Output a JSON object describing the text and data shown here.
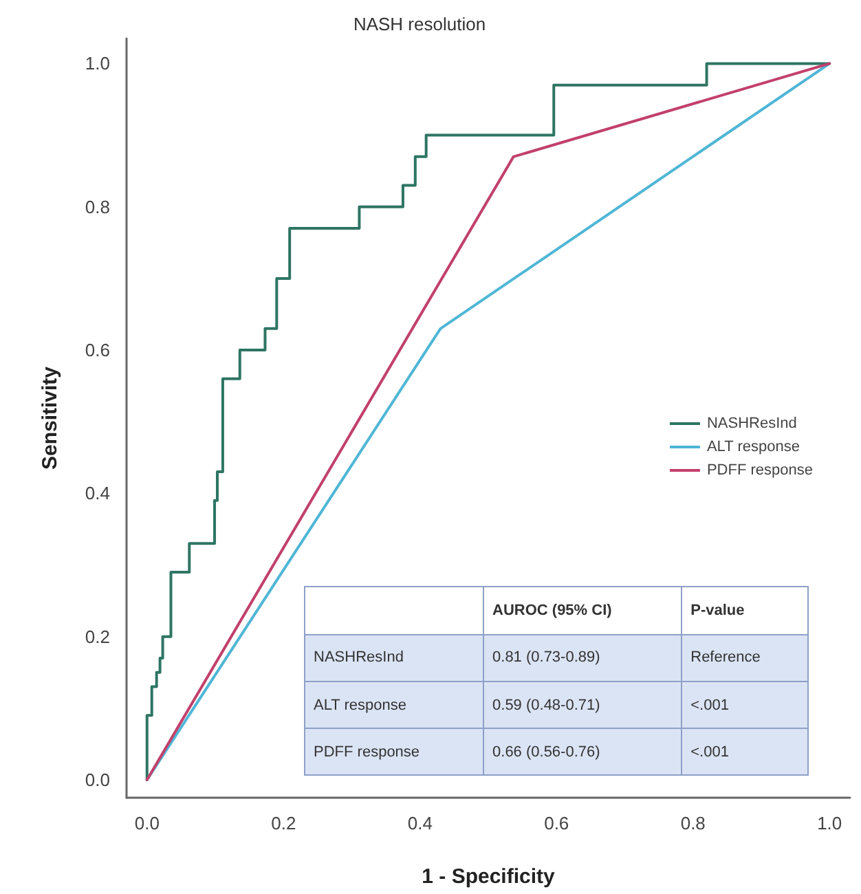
{
  "chart_data": {
    "type": "line",
    "title": "NASH resolution",
    "xlabel": "1 - Specificity",
    "ylabel": "Sensitivity",
    "xlim": [
      -0.03,
      1.03
    ],
    "ylim": [
      -0.025,
      1.035
    ],
    "xticks": [
      {
        "value": 0,
        "label": "0.0"
      },
      {
        "value": 0.2,
        "label": "0.2"
      },
      {
        "value": 0.4,
        "label": "0.4"
      },
      {
        "value": 0.6,
        "label": "0.6"
      },
      {
        "value": 0.8,
        "label": "0.8"
      },
      {
        "value": 1,
        "label": "1.0"
      }
    ],
    "yticks": [
      {
        "value": 0,
        "label": "0.0"
      },
      {
        "value": 0.2,
        "label": "0.2"
      },
      {
        "value": 0.4,
        "label": "0.4"
      },
      {
        "value": 0.6,
        "label": "0.6"
      },
      {
        "value": 0.8,
        "label": "0.8"
      },
      {
        "value": 1,
        "label": "1.0"
      }
    ],
    "series": [
      {
        "name": "NASHResInd",
        "color": "#2e7563",
        "x": [
          0,
          0,
          0.007,
          0.007,
          0.014,
          0.014,
          0.019,
          0.019,
          0.023,
          0.023,
          0.035,
          0.035,
          0.062,
          0.062,
          0.099,
          0.099,
          0.103,
          0.103,
          0.111,
          0.111,
          0.136,
          0.136,
          0.173,
          0.173,
          0.19,
          0.19,
          0.209,
          0.209,
          0.311,
          0.311,
          0.375,
          0.375,
          0.393,
          0.393,
          0.409,
          0.409,
          0.596,
          0.596,
          0.82,
          0.82,
          1
        ],
        "values": [
          0,
          0.09,
          0.09,
          0.13,
          0.13,
          0.15,
          0.15,
          0.17,
          0.17,
          0.2,
          0.2,
          0.29,
          0.29,
          0.33,
          0.33,
          0.39,
          0.39,
          0.43,
          0.43,
          0.56,
          0.56,
          0.6,
          0.6,
          0.63,
          0.63,
          0.7,
          0.7,
          0.77,
          0.77,
          0.8,
          0.8,
          0.83,
          0.83,
          0.87,
          0.87,
          0.9,
          0.9,
          0.97,
          0.97,
          1,
          1
        ]
      },
      {
        "name": "ALT response",
        "color": "#4fb6d6",
        "x": [
          0,
          0.43,
          1
        ],
        "values": [
          0,
          0.63,
          1
        ]
      },
      {
        "name": "PDFF response",
        "color": "#c2406b",
        "x": [
          0,
          0.537,
          1
        ],
        "values": [
          0,
          0.87,
          1
        ]
      }
    ],
    "legend": "right",
    "grid": false,
    "marker": "none",
    "line_style": "solid",
    "annotations": [
      "AUROC (95% CI)",
      "P-value",
      "NASHResInd",
      "0.81  (0.73-0.89)",
      "Reference",
      "ALT response",
      "0.59 (0.48-0.71)",
      "<.001",
      "PDFF response",
      "0.66 (0.56-0.76)",
      "<.001"
    ]
  }
}
